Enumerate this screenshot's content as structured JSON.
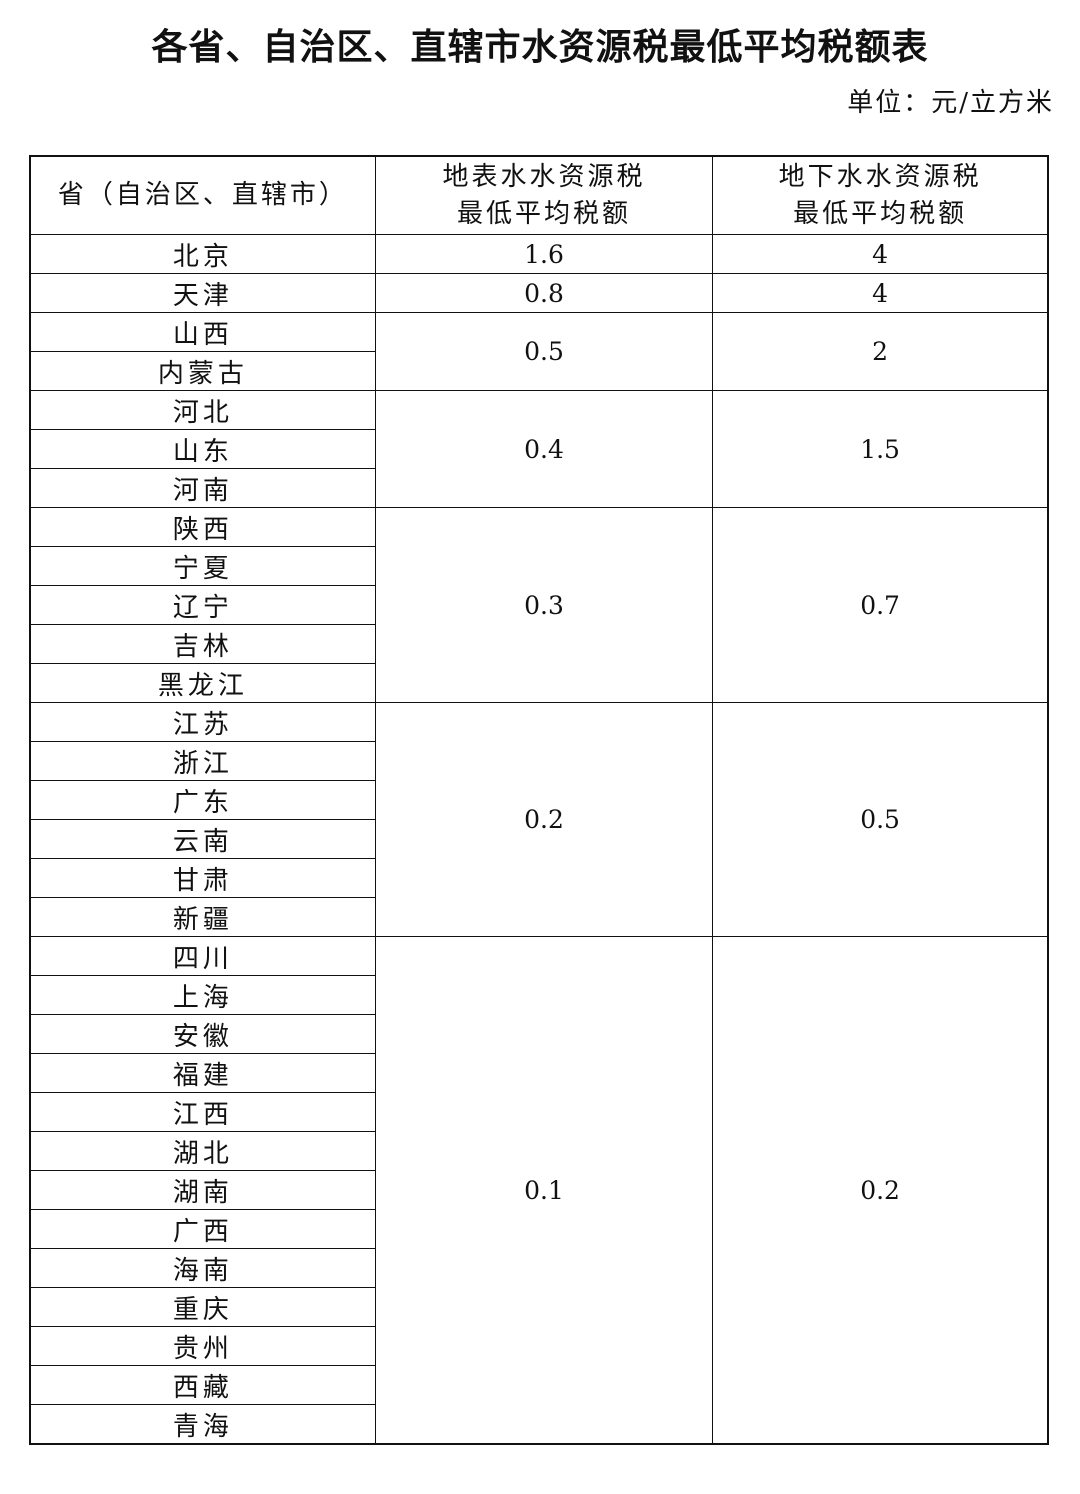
{
  "title": "各省、自治区、直辖市水资源税最低平均税额表",
  "unit": "单位：元/立方米",
  "headers": {
    "province": "省（自治区、直辖市）",
    "surface": [
      "地表水水资源税",
      "最低平均税额"
    ],
    "ground": [
      "地下水水资源税",
      "最低平均税额"
    ]
  },
  "groups": [
    {
      "provinces": [
        "北京"
      ],
      "surface": "1.6",
      "ground": "4"
    },
    {
      "provinces": [
        "天津"
      ],
      "surface": "0.8",
      "ground": "4"
    },
    {
      "provinces": [
        "山西",
        "内蒙古"
      ],
      "surface": "0.5",
      "ground": "2"
    },
    {
      "provinces": [
        "河北",
        "山东",
        "河南"
      ],
      "surface": "0.4",
      "ground": "1.5"
    },
    {
      "provinces": [
        "陕西",
        "宁夏",
        "辽宁",
        "吉林",
        "黑龙江"
      ],
      "surface": "0.3",
      "ground": "0.7"
    },
    {
      "provinces": [
        "江苏",
        "浙江",
        "广东",
        "云南",
        "甘肃",
        "新疆"
      ],
      "surface": "0.2",
      "ground": "0.5"
    },
    {
      "provinces": [
        "四川",
        "上海",
        "安徽",
        "福建",
        "江西",
        "湖北",
        "湖南",
        "广西",
        "海南",
        "重庆",
        "贵州",
        "西藏",
        "青海"
      ],
      "surface": "0.1",
      "ground": "0.2"
    }
  ]
}
